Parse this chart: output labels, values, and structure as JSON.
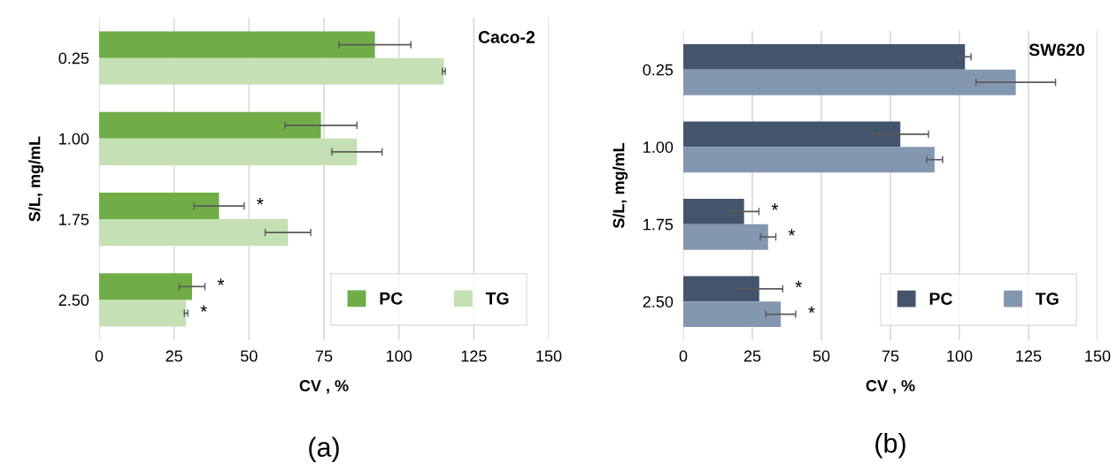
{
  "chart_data": [
    {
      "type": "bar",
      "orientation": "horizontal",
      "title": "Caco-2",
      "xlabel": "CV , %",
      "ylabel": "S/L, mg/mL",
      "categories": [
        "0.25",
        "1.00",
        "1.75",
        "2.50"
      ],
      "series": [
        {
          "name": "PC",
          "color": "#70ad47",
          "values": [
            92,
            74,
            40,
            31
          ],
          "errors": [
            12,
            12,
            8.4,
            4.3
          ],
          "value_labels": [
            null,
            null,
            "*",
            "*"
          ]
        },
        {
          "name": "TG",
          "color": "#c5e0b4",
          "values": [
            115,
            86,
            63,
            29
          ],
          "errors": [
            0.5,
            8.4,
            7.6,
            0.6
          ],
          "value_labels": [
            null,
            null,
            null,
            "*"
          ]
        }
      ],
      "xlim": [
        0,
        150
      ],
      "xticks": [
        0,
        25,
        50,
        75,
        100,
        125,
        150
      ],
      "grid": "x",
      "legend": "bottom right",
      "annotations": [
        "(a)"
      ]
    },
    {
      "type": "bar",
      "orientation": "horizontal",
      "title": "SW620",
      "xlabel": "CV , %",
      "ylabel": "S/L, mg/mL",
      "categories": [
        "0.25",
        "1.00",
        "1.75",
        "2.50"
      ],
      "series": [
        {
          "name": "PC",
          "color": "#44546a",
          "values": [
            102,
            78.6,
            22,
            27.5
          ],
          "errors": [
            2.2,
            10.2,
            5.4,
            8.5
          ],
          "value_labels": [
            null,
            null,
            "*",
            "*"
          ]
        },
        {
          "name": "TG",
          "color": "#8497b0",
          "values": [
            120.4,
            91,
            30.7,
            35.3
          ],
          "errors": [
            14.4,
            2.9,
            2.8,
            5.4
          ],
          "value_labels": [
            null,
            null,
            "*",
            "*"
          ]
        }
      ],
      "xlim": [
        0,
        150
      ],
      "xticks": [
        0,
        25,
        50,
        75,
        100,
        125,
        150
      ],
      "grid": "x",
      "legend": "bottom right",
      "annotations": [
        "(b)"
      ]
    }
  ]
}
